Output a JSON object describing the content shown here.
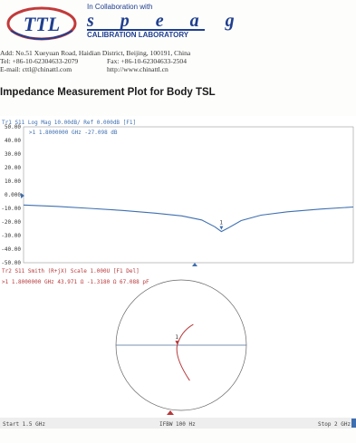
{
  "header": {
    "logo_text": "TTL",
    "collaboration": "In Collaboration with",
    "speag": "s p e a g",
    "calibration": "CALIBRATION LABORATORY",
    "address": "Add: No.51 Xueyuan Road, Haidian District, Beijing, 100191, China",
    "tel": "Tel: +86-10-62304633-2079",
    "fax": "Fax: +86-10-62304633-2504",
    "email": "E-mail: cttl@chinattl.com",
    "http": "http://www.chinattl.cn"
  },
  "title": "Impedance Measurement Plot for Body TSL",
  "chart_data": [
    {
      "type": "line",
      "header": "Tr1  S11  Log Mag  10.00dB/  Ref  0.000dB  [F1]",
      "marker_readout": ">1   1.8000000 GHz  -27.098 dB",
      "y_ticks": [
        "50.00",
        "40.00",
        "30.00",
        "20.00",
        "10.00",
        "0.000",
        "-10.00",
        "-20.00",
        "-30.00",
        "-40.00",
        "-50.00"
      ],
      "ylim": [
        -50,
        50
      ],
      "xlim": [
        1.5,
        2.0
      ],
      "x_unit": "GHz",
      "series": [
        {
          "x": [
            1.5,
            1.55,
            1.6,
            1.65,
            1.7,
            1.74,
            1.77,
            1.79,
            1.8,
            1.81,
            1.83,
            1.86,
            1.9,
            1.95,
            2.0
          ],
          "values": [
            -7.5,
            -8.5,
            -10.0,
            -11.5,
            -13.5,
            -15.5,
            -18.5,
            -23.5,
            -27.1,
            -24.5,
            -19.0,
            -15.0,
            -12.5,
            -10.5,
            -9.0
          ]
        }
      ],
      "marker": {
        "label": "1",
        "x": 1.8,
        "y": -27.098
      }
    },
    {
      "type": "smith",
      "header": "Tr2  S11  Smith (R+jX)  Scale 1.000U  [F1 Del]",
      "marker_readout": ">1   1.8000000 GHz   43.971 Ω  -1.3180 Ω   67.088 pF",
      "marker": {
        "label": "1",
        "r_ohm": 43.971,
        "x_ohm": -1.318
      },
      "start": "Start 1.5 GHz",
      "ifbw": "IFBW 100 Hz",
      "stop": "Stop 2 GHz"
    }
  ],
  "colors": {
    "trace": "#3e6fb0",
    "marker_line": "#b8383a",
    "brand": "#1f3f8f",
    "logo_red": "#c23a3a"
  }
}
